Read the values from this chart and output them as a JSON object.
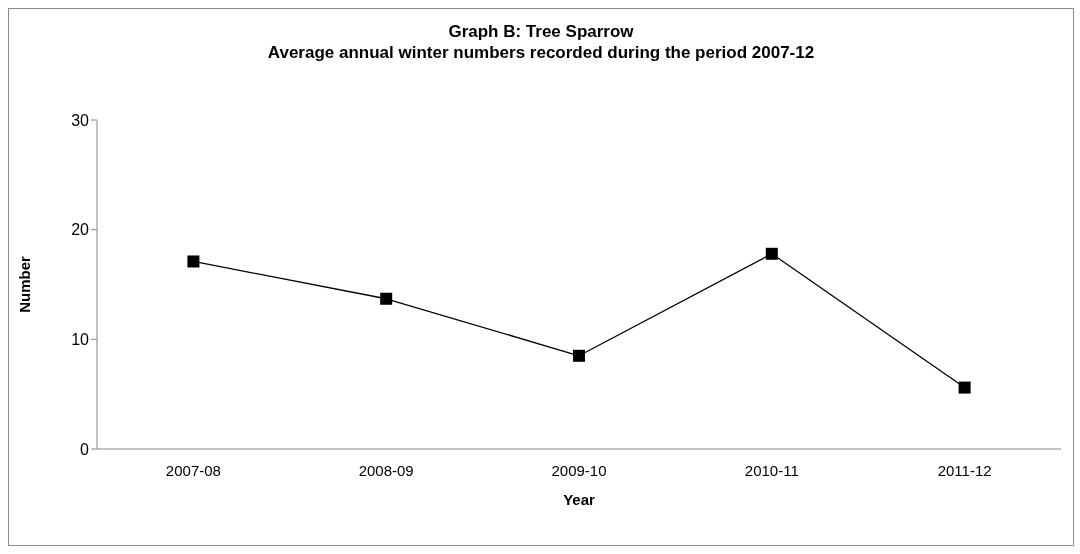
{
  "chart_data": {
    "type": "line",
    "title": "Graph B: Tree Sparrow",
    "subtitle": "Average annual winter numbers recorded during the period 2007-12",
    "xlabel": "Year",
    "ylabel": "Number",
    "categories": [
      "2007-08",
      "2008-09",
      "2009-10",
      "2010-11",
      "2011-12"
    ],
    "series": [
      {
        "color": "#000000",
        "values": [
          17.1,
          13.7,
          8.5,
          17.8,
          5.6
        ]
      }
    ],
    "ylim": [
      0,
      30
    ],
    "yticks": [
      0,
      10,
      20,
      30
    ],
    "grid": false,
    "legend": false,
    "marker": "square",
    "line_style": "solid"
  }
}
